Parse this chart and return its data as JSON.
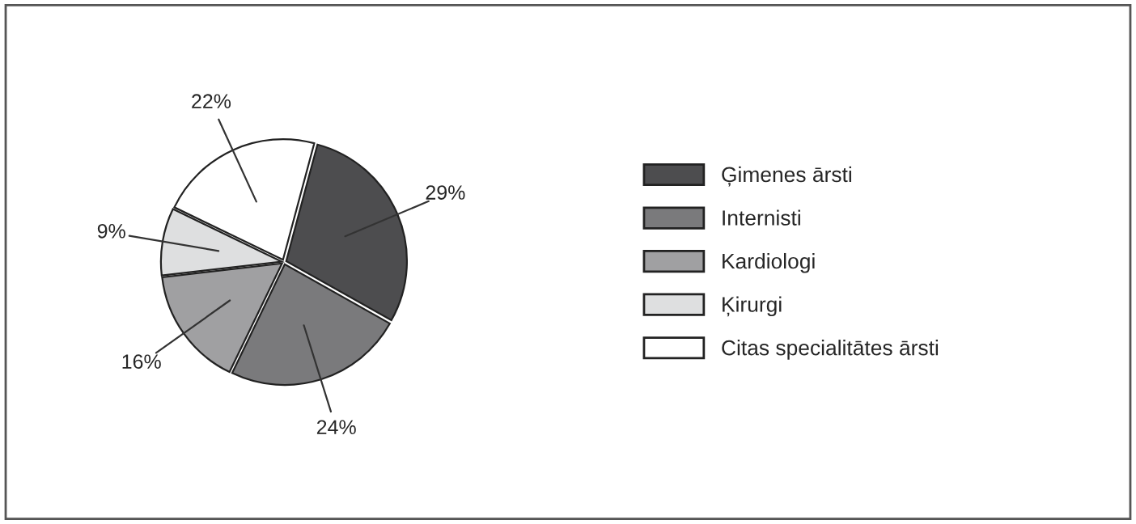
{
  "chart_data": {
    "type": "pie",
    "categories": [
      "Ģimenes ārsti",
      "Internisti",
      "Kardiologi",
      "Ķirurgi",
      "Citas specialitātes ārsti"
    ],
    "values": [
      29,
      24,
      16,
      9,
      22
    ],
    "colors": [
      "#4d4d4f",
      "#7a7a7c",
      "#a0a0a2",
      "#dedfe0",
      "#ffffff"
    ],
    "value_labels": [
      "29%",
      "24%",
      "16%",
      "9%",
      "22%"
    ],
    "legend": "right"
  }
}
